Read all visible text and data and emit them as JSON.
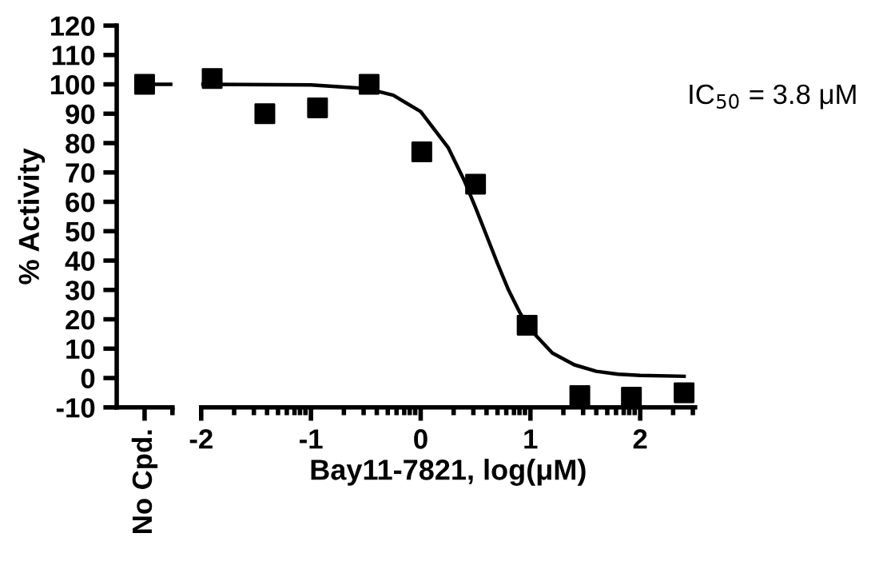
{
  "chart_data": [
    {
      "type": "scatter",
      "ylabel": "% Activity",
      "categories": [
        "No Cpd."
      ],
      "ylim": [
        -10,
        120
      ],
      "yticks": [
        -10,
        0,
        10,
        20,
        30,
        40,
        50,
        60,
        70,
        80,
        90,
        100,
        110,
        120
      ],
      "series": [
        {
          "color": "#000000",
          "marker": "square",
          "values": [
            100
          ]
        }
      ]
    },
    {
      "type": "scatter",
      "xlabel": "Bay11-7821, log(μM)",
      "xlim": [
        -2,
        2.5
      ],
      "ylim": [
        -10,
        120
      ],
      "yticks": [
        -10,
        0,
        10,
        20,
        30,
        40,
        50,
        60,
        70,
        80,
        90,
        100,
        110,
        120
      ],
      "tick_labels": "x",
      "xticks": [
        -2,
        -1,
        0,
        1,
        2,
        {
          "value": -1.7,
          "label": null
        },
        {
          "value": -1.52,
          "label": null
        },
        {
          "value": -1.4,
          "label": null
        },
        {
          "value": -1.3,
          "label": null
        },
        {
          "value": -1.22,
          "label": null
        },
        {
          "value": -1.15,
          "label": null
        },
        {
          "value": -1.1,
          "label": null
        },
        {
          "value": -1.05,
          "label": null
        },
        {
          "value": -0.7,
          "label": null
        },
        {
          "value": -0.52,
          "label": null
        },
        {
          "value": -0.4,
          "label": null
        },
        {
          "value": -0.3,
          "label": null
        },
        {
          "value": -0.22,
          "label": null
        },
        {
          "value": -0.15,
          "label": null
        },
        {
          "value": -0.1,
          "label": null
        },
        {
          "value": -0.05,
          "label": null
        },
        {
          "value": 0.3,
          "label": null
        },
        {
          "value": 0.48,
          "label": null
        },
        {
          "value": 0.6,
          "label": null
        },
        {
          "value": 0.7,
          "label": null
        },
        {
          "value": 0.78,
          "label": null
        },
        {
          "value": 0.85,
          "label": null
        },
        {
          "value": 0.9,
          "label": null
        },
        {
          "value": 0.95,
          "label": null
        },
        {
          "value": 1.3,
          "label": null
        },
        {
          "value": 1.48,
          "label": null
        },
        {
          "value": 1.6,
          "label": null
        },
        {
          "value": 1.7,
          "label": null
        },
        {
          "value": 1.78,
          "label": null
        },
        {
          "value": 1.85,
          "label": null
        },
        {
          "value": 1.9,
          "label": null
        },
        {
          "value": 1.95,
          "label": null
        },
        {
          "value": 2.3,
          "label": null
        },
        {
          "value": 2.48,
          "label": null
        }
      ],
      "annotations": [
        "IC$_{50}$ = 3.8 μM"
      ],
      "series": [
        {
          "color": "#000000",
          "marker": "square",
          "x": [
            -1.9,
            -1.42,
            -0.94,
            -0.47,
            0.01,
            0.5,
            0.97,
            1.45,
            1.92,
            2.4
          ],
          "values": [
            102,
            90,
            92,
            100,
            77,
            66,
            18,
            -6,
            -6.5,
            -5
          ]
        },
        {
          "type": "line",
          "color": "#000000",
          "marker": "none",
          "line_style": "solid",
          "x": [
            -2,
            -1,
            -0.5,
            -0.25,
            0,
            0.25,
            0.4,
            0.5,
            0.6,
            0.7,
            0.8,
            0.9,
            1.0,
            1.2,
            1.4,
            1.6,
            1.8,
            2.0,
            2.4
          ],
          "values": [
            100,
            99.8,
            98.6,
            96.3,
            90.7,
            78.5,
            67,
            58,
            48.5,
            39,
            30,
            22.5,
            16.5,
            8.5,
            4.5,
            2.3,
            1.3,
            0.9,
            0.6
          ]
        }
      ]
    }
  ]
}
